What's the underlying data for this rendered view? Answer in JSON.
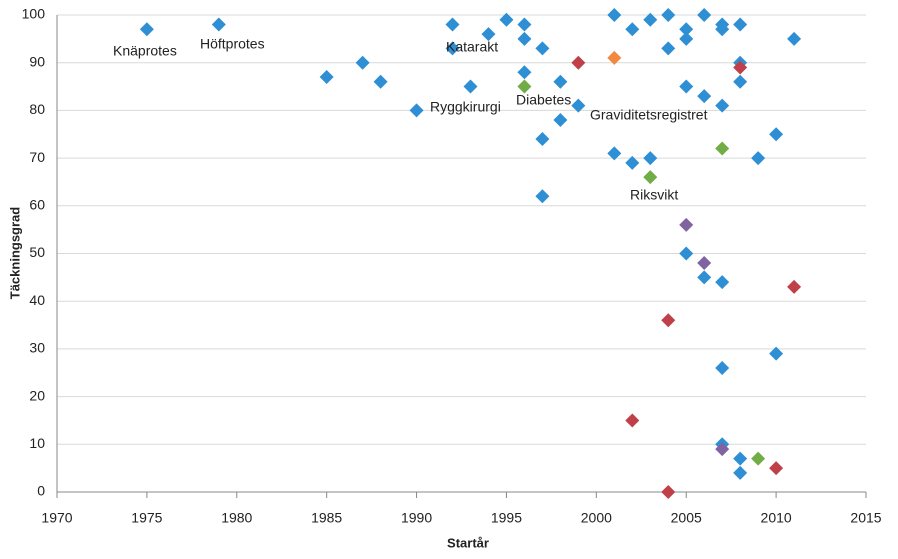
{
  "chart_data": {
    "type": "scatter",
    "xlabel": "Startår",
    "ylabel": "Täckningsgrad",
    "xlim": [
      1970,
      2015
    ],
    "xticks": [
      1970,
      1975,
      1980,
      1985,
      1990,
      1995,
      2000,
      2005,
      2010,
      2015
    ],
    "ylim": [
      0,
      100
    ],
    "yticks": [
      0,
      10,
      20,
      30,
      40,
      50,
      60,
      70,
      80,
      90,
      100
    ],
    "grid": true,
    "series": [
      {
        "color": "#2e8fd4",
        "x": [
          1975,
          1979,
          1985,
          1987,
          1988,
          1990,
          1992,
          1992,
          1993,
          1994,
          1995,
          1996,
          1996,
          1996,
          1997,
          1997,
          1997,
          1998,
          1998,
          1999,
          2001,
          2001,
          2002,
          2002,
          2003,
          2003,
          2004,
          2004,
          2005,
          2005,
          2005,
          2005,
          2006,
          2006,
          2006,
          2007,
          2007,
          2007,
          2007,
          2007,
          2007,
          2008,
          2008,
          2008,
          2008,
          2008,
          2009,
          2010,
          2010,
          2011
        ],
        "values": [
          97,
          98,
          87,
          90,
          86,
          80,
          98,
          93,
          85,
          96,
          99,
          98,
          95,
          88,
          93,
          74,
          62,
          86,
          78,
          81,
          100,
          71,
          97,
          69,
          99,
          70,
          100,
          93,
          97,
          95,
          85,
          50,
          100,
          83,
          45,
          98,
          97,
          81,
          44,
          26,
          10,
          98,
          90,
          86,
          7,
          4,
          70,
          75,
          29,
          95
        ]
      },
      {
        "color": "#70ad47",
        "x": [
          1996,
          2003,
          2007,
          2009
        ],
        "values": [
          85,
          66,
          72,
          7
        ]
      },
      {
        "color": "#c0404a",
        "x": [
          1999,
          2008,
          2011,
          2004,
          2002,
          2010,
          2004
        ],
        "values": [
          90,
          89,
          43,
          36,
          15,
          5,
          0
        ]
      },
      {
        "color": "#8064a2",
        "x": [
          2005,
          2006,
          2007
        ],
        "values": [
          56,
          48,
          9
        ]
      },
      {
        "color": "#f08a40",
        "x": [
          2001
        ],
        "values": [
          91
        ]
      }
    ],
    "annotations": [
      "Knäprotes",
      "Höftprotes",
      "Katarakt",
      "Ryggkirurgi",
      "Diabetes",
      "Graviditetsregistret",
      "Riksvikt"
    ]
  }
}
